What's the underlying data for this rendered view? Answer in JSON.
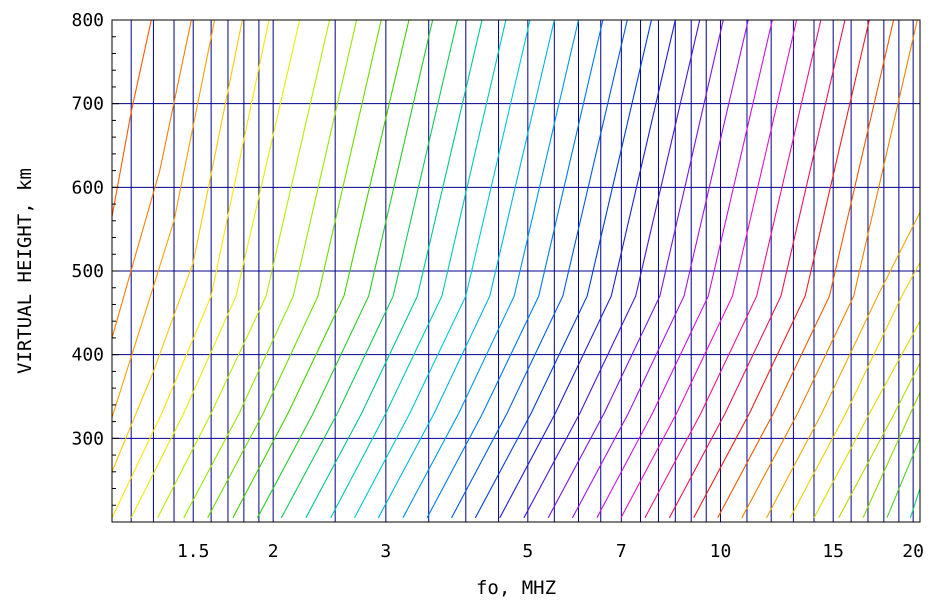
{
  "chart_data": {
    "type": "line",
    "title": "",
    "xlabel": "fo, MHZ",
    "ylabel": "VIRTUAL HEIGHT, km",
    "x_scale": "log",
    "xlim": [
      1.12,
      20.5
    ],
    "ylim": [
      200,
      800
    ],
    "x_ticks": [
      {
        "value": 1.5,
        "label": "1.5"
      },
      {
        "value": 2,
        "label": "2"
      },
      {
        "value": 3,
        "label": "3"
      },
      {
        "value": 5,
        "label": "5"
      },
      {
        "value": 7,
        "label": "7"
      },
      {
        "value": 10,
        "label": "10"
      },
      {
        "value": 15,
        "label": "15"
      },
      {
        "value": 20,
        "label": "20"
      }
    ],
    "y_ticks": [
      {
        "value": 300,
        "label": "300"
      },
      {
        "value": 400,
        "label": "400"
      },
      {
        "value": 500,
        "label": "500"
      },
      {
        "value": 600,
        "label": "600"
      },
      {
        "value": 700,
        "label": "700"
      },
      {
        "value": 800,
        "label": "800"
      }
    ],
    "grid": {
      "vertical_lines_at": [
        1.2,
        1.3,
        1.4,
        1.5,
        1.6,
        1.7,
        1.8,
        1.9,
        2,
        2.5,
        3,
        3.5,
        4,
        4.5,
        5,
        5.5,
        6,
        6.5,
        7,
        7.5,
        8,
        8.5,
        9,
        9.5,
        10,
        11,
        12,
        13,
        14,
        15,
        16,
        17,
        18,
        19,
        20
      ],
      "horizontal_lines_at": [
        300,
        400,
        500,
        600,
        700
      ],
      "color": "#00008b"
    },
    "series": [
      {
        "color": "#ff5a00",
        "x": [
          1.12,
          1.2,
          1.29
        ],
        "y": [
          565,
          690,
          800
        ]
      },
      {
        "color": "#ff7d00",
        "x": [
          1.12,
          1.22,
          1.33,
          1.49
        ],
        "y": [
          420,
          520,
          620,
          800
        ]
      },
      {
        "color": "#ffa000",
        "x": [
          1.12,
          1.25,
          1.4,
          1.62
        ],
        "y": [
          325,
          440,
          560,
          800
        ]
      },
      {
        "color": "#ffc800",
        "x": [
          1.12,
          1.3,
          1.5,
          1.79
        ],
        "y": [
          260,
          380,
          510,
          800
        ]
      },
      {
        "color": "#ffe600",
        "x": [
          1.12,
          1.34,
          1.6,
          1.97
        ],
        "y": [
          205,
          330,
          470,
          800
        ]
      },
      {
        "color": "#e6f000",
        "x": [
          1.2,
          1.45,
          1.75,
          2.2
        ],
        "y": [
          205,
          330,
          470,
          800
        ]
      },
      {
        "color": "#b4f000",
        "x": [
          1.32,
          1.6,
          1.95,
          2.45
        ],
        "y": [
          205,
          330,
          470,
          800
        ]
      },
      {
        "color": "#96ea00",
        "x": [
          1.45,
          1.77,
          2.15,
          2.7
        ],
        "y": [
          205,
          330,
          470,
          800
        ]
      },
      {
        "color": "#6edc00",
        "x": [
          1.58,
          1.93,
          2.35,
          2.95
        ],
        "y": [
          205,
          330,
          470,
          800
        ]
      },
      {
        "color": "#46d200",
        "x": [
          1.73,
          2.11,
          2.58,
          3.26
        ],
        "y": [
          205,
          330,
          470,
          800
        ]
      },
      {
        "color": "#28cd28",
        "x": [
          1.89,
          2.31,
          2.82,
          3.55
        ],
        "y": [
          205,
          330,
          470,
          800
        ]
      },
      {
        "color": "#14c85a",
        "x": [
          2.06,
          2.52,
          3.08,
          3.88
        ],
        "y": [
          205,
          330,
          470,
          800
        ]
      },
      {
        "color": "#00c88c",
        "x": [
          2.25,
          2.75,
          3.36,
          4.24
        ],
        "y": [
          205,
          330,
          470,
          800
        ]
      },
      {
        "color": "#00c8b4",
        "x": [
          2.46,
          3.0,
          3.67,
          4.62
        ],
        "y": [
          205,
          330,
          470,
          800
        ]
      },
      {
        "color": "#00c8d7",
        "x": [
          2.68,
          3.27,
          4.0,
          5.04
        ],
        "y": [
          205,
          330,
          470,
          800
        ]
      },
      {
        "color": "#00b4e6",
        "x": [
          2.92,
          3.57,
          4.36,
          5.5
        ],
        "y": [
          205,
          330,
          470,
          800
        ]
      },
      {
        "color": "#0096f0",
        "x": [
          3.19,
          3.9,
          4.76,
          6.0
        ],
        "y": [
          205,
          330,
          470,
          800
        ]
      },
      {
        "color": "#0078f0",
        "x": [
          3.48,
          4.25,
          5.2,
          6.55
        ],
        "y": [
          205,
          330,
          470,
          800
        ]
      },
      {
        "color": "#005ae6",
        "x": [
          3.8,
          4.64,
          5.67,
          7.15
        ],
        "y": [
          205,
          330,
          470,
          800
        ]
      },
      {
        "color": "#003cdc",
        "x": [
          4.14,
          5.06,
          6.19,
          7.8
        ],
        "y": [
          205,
          330,
          470,
          800
        ]
      },
      {
        "color": "#1e1ed2",
        "x": [
          4.52,
          5.52,
          6.75,
          8.5
        ],
        "y": [
          205,
          330,
          470,
          800
        ]
      },
      {
        "color": "#4614dc",
        "x": [
          4.93,
          6.03,
          7.37,
          9.28
        ],
        "y": [
          205,
          330,
          470,
          800
        ]
      },
      {
        "color": "#7814e6",
        "x": [
          5.38,
          6.58,
          8.04,
          10.1
        ],
        "y": [
          205,
          330,
          470,
          800
        ]
      },
      {
        "color": "#a014f0",
        "x": [
          5.87,
          7.18,
          8.77,
          11.05
        ],
        "y": [
          205,
          330,
          470,
          800
        ]
      },
      {
        "color": "#c814e6",
        "x": [
          6.41,
          7.83,
          9.57,
          12.05
        ],
        "y": [
          205,
          330,
          470,
          800
        ]
      },
      {
        "color": "#e614c8",
        "x": [
          6.99,
          8.54,
          10.44,
          13.15
        ],
        "y": [
          205,
          330,
          470,
          800
        ]
      },
      {
        "color": "#f0148c",
        "x": [
          7.62,
          9.32,
          11.39,
          14.35
        ],
        "y": [
          205,
          330,
          470,
          800
        ]
      },
      {
        "color": "#f01450",
        "x": [
          8.32,
          10.17,
          12.43,
          15.65
        ],
        "y": [
          205,
          330,
          470,
          800
        ]
      },
      {
        "color": "#f01e1e",
        "x": [
          9.08,
          11.1,
          13.56,
          17.08
        ],
        "y": [
          205,
          330,
          470,
          800
        ]
      },
      {
        "color": "#f05a00",
        "x": [
          9.9,
          12.1,
          14.8,
          18.64
        ],
        "y": [
          205,
          330,
          470,
          800
        ]
      },
      {
        "color": "#f08200",
        "x": [
          10.8,
          13.2,
          16.15,
          20.3
        ],
        "y": [
          205,
          330,
          470,
          800
        ]
      },
      {
        "color": "#f0aa00",
        "x": [
          11.8,
          14.4,
          17.6,
          20.5
        ],
        "y": [
          205,
          330,
          470,
          570
        ]
      },
      {
        "color": "#f0d200",
        "x": [
          12.85,
          15.7,
          19.2,
          20.5
        ],
        "y": [
          205,
          330,
          470,
          510
        ]
      },
      {
        "color": "#dcdc00",
        "x": [
          14.0,
          17.1,
          20.5
        ],
        "y": [
          205,
          330,
          440
        ]
      },
      {
        "color": "#b4dc00",
        "x": [
          15.3,
          18.7,
          20.5
        ],
        "y": [
          205,
          330,
          390
        ]
      },
      {
        "color": "#8cdc00",
        "x": [
          16.7,
          20.5
        ],
        "y": [
          205,
          355
        ]
      },
      {
        "color": "#50d228",
        "x": [
          18.2,
          20.5
        ],
        "y": [
          205,
          300
        ]
      },
      {
        "color": "#1ecd64",
        "x": [
          19.8,
          20.5
        ],
        "y": [
          205,
          240
        ]
      }
    ]
  }
}
